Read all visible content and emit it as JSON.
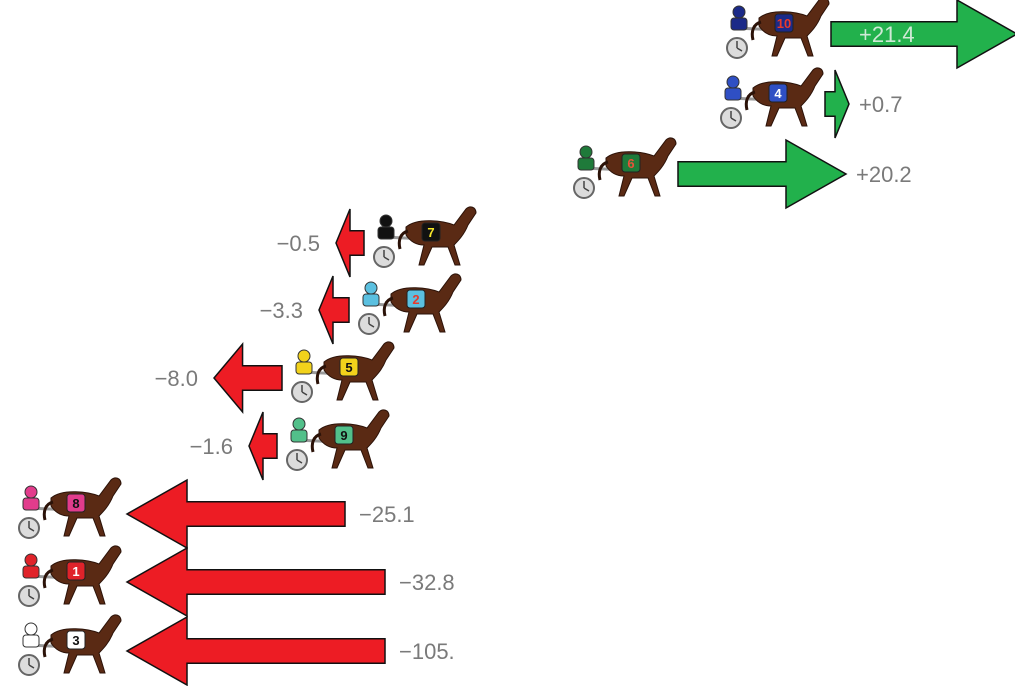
{
  "chart_data": {
    "type": "bar",
    "orientation": "horizontal",
    "title": "",
    "xlabel": "",
    "ylabel": "",
    "colors": {
      "gain": "#22b14c",
      "loss": "#ed1c24",
      "value_text": "#7a7a7a",
      "horse": "#5a2a14"
    },
    "rows": [
      {
        "horse_number": "10",
        "value": 21.4,
        "value_label": "+21.4",
        "cloth": "#1b2a88",
        "number_color": "#e83a2b"
      },
      {
        "horse_number": "4",
        "value": 0.7,
        "value_label": "+0.7",
        "cloth": "#2f4fc4",
        "number_color": "#ffffff"
      },
      {
        "horse_number": "6",
        "value": 20.2,
        "value_label": "+20.2",
        "cloth": "#1f7a3a",
        "number_color": "#e8523a"
      },
      {
        "horse_number": "7",
        "value": -0.5,
        "value_label": "−0.5",
        "cloth": "#111111",
        "number_color": "#f6e62a"
      },
      {
        "horse_number": "2",
        "value": -3.3,
        "value_label": "−3.3",
        "cloth": "#5bc0e0",
        "number_color": "#e83a2b"
      },
      {
        "horse_number": "5",
        "value": -8.0,
        "value_label": "−8.0",
        "cloth": "#f2d21b",
        "number_color": "#111111"
      },
      {
        "horse_number": "9",
        "value": -1.6,
        "value_label": "−1.6",
        "cloth": "#52c08a",
        "number_color": "#111111"
      },
      {
        "horse_number": "8",
        "value": -25.1,
        "value_label": "−25.1",
        "cloth": "#e23c8c",
        "number_color": "#111111"
      },
      {
        "horse_number": "1",
        "value": -32.8,
        "value_label": "−32.8",
        "cloth": "#e0232a",
        "number_color": "#ffffff"
      },
      {
        "horse_number": "3",
        "value": -105.0,
        "value_label": "−105.",
        "cloth": "#ffffff",
        "number_color": "#111111"
      }
    ]
  }
}
